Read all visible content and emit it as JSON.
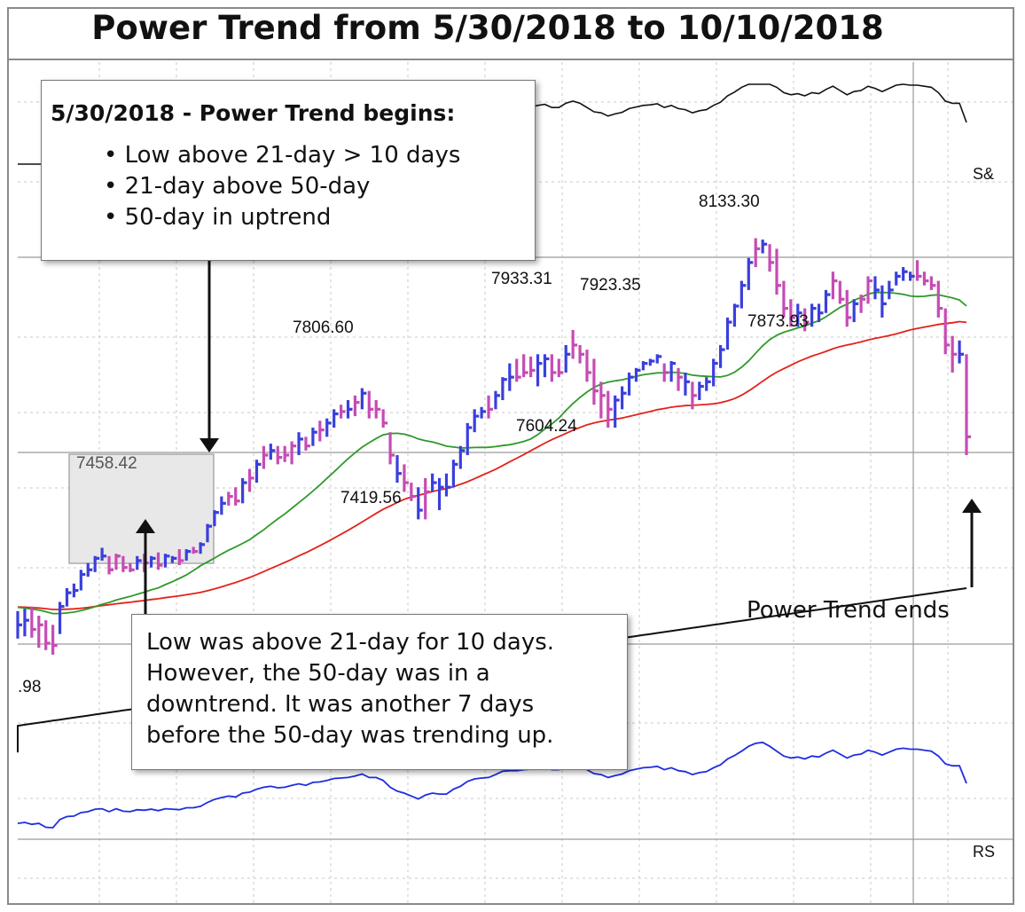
{
  "title": "Power Trend from 5/30/2018 to 10/10/2018",
  "callout_begin": {
    "heading": "5/30/2018 - Power Trend begins:",
    "bullets": [
      "Low above 21-day > 10 days",
      "21-day above 50-day",
      "50-day in uptrend"
    ]
  },
  "callout_note": {
    "lines": [
      "Low was above 21-day for 10 days.",
      "However, the 50-day was in a",
      "downtrend. It was another 7 days",
      "before the 50-day was trending up."
    ]
  },
  "end_label": "Power Trend ends",
  "colors": {
    "up_bar": "#3a3fdc",
    "down_bar": "#c64bb4",
    "ma21": "#2f9a2a",
    "ma50": "#e2231a",
    "ma200": "#111111",
    "sp500": "#111111",
    "rs": "#1f2de0",
    "box_fill": "#e8e8e8"
  },
  "chart_data": {
    "type": "line",
    "title": "Power Trend from 5/30/2018 to 10/10/2018",
    "price_axis": [
      7250,
      8250
    ],
    "series_labels": {
      "sp500": "S&",
      "rs": "RS"
    },
    "left_partial_label": ".98",
    "annotations": [
      {
        "text": "7458.42",
        "value": 7458.42,
        "index": 6
      },
      {
        "text": "7806.60",
        "value": 7806.6,
        "index": 33
      },
      {
        "text": "7419.56",
        "value": 7419.56,
        "index": 38
      },
      {
        "text": "7933.31",
        "value": 7933.31,
        "index": 53
      },
      {
        "text": "7923.35",
        "value": 7923.35,
        "index": 61
      },
      {
        "text": "7604.24",
        "value": 7604.24,
        "index": 56
      },
      {
        "text": "8133.30",
        "value": 8133.3,
        "index": 75
      },
      {
        "text": "7873.93",
        "value": 7873.93,
        "index": 85
      }
    ],
    "ohlc": [
      {
        "h": 7320,
        "l": 7260,
        "c": 7290,
        "up": true
      },
      {
        "h": 7325,
        "l": 7265,
        "c": 7300,
        "up": true
      },
      {
        "h": 7330,
        "l": 7262,
        "c": 7280,
        "up": false
      },
      {
        "h": 7310,
        "l": 7240,
        "c": 7290,
        "up": false
      },
      {
        "h": 7300,
        "l": 7235,
        "c": 7250,
        "up": false
      },
      {
        "h": 7290,
        "l": 7225,
        "c": 7245,
        "up": false
      },
      {
        "h": 7340,
        "l": 7270,
        "c": 7330,
        "up": true
      },
      {
        "h": 7370,
        "l": 7330,
        "c": 7360,
        "up": true
      },
      {
        "h": 7380,
        "l": 7350,
        "c": 7365,
        "up": true
      },
      {
        "h": 7410,
        "l": 7365,
        "c": 7400,
        "up": true
      },
      {
        "h": 7425,
        "l": 7395,
        "c": 7410,
        "up": true
      },
      {
        "h": 7440,
        "l": 7405,
        "c": 7435,
        "up": true
      },
      {
        "h": 7458,
        "l": 7430,
        "c": 7440,
        "up": true
      },
      {
        "h": 7440,
        "l": 7400,
        "c": 7410,
        "up": false
      },
      {
        "h": 7445,
        "l": 7410,
        "c": 7440,
        "up": false
      },
      {
        "h": 7440,
        "l": 7405,
        "c": 7415,
        "up": false
      },
      {
        "h": 7425,
        "l": 7405,
        "c": 7410,
        "up": false
      },
      {
        "h": 7440,
        "l": 7410,
        "c": 7430,
        "up": true
      },
      {
        "h": 7445,
        "l": 7405,
        "c": 7425,
        "up": false
      },
      {
        "h": 7440,
        "l": 7415,
        "c": 7435,
        "up": true
      },
      {
        "h": 7448,
        "l": 7410,
        "c": 7420,
        "up": false
      },
      {
        "h": 7445,
        "l": 7415,
        "c": 7440,
        "up": true
      },
      {
        "h": 7440,
        "l": 7425,
        "c": 7435,
        "up": true
      },
      {
        "h": 7455,
        "l": 7420,
        "c": 7430,
        "up": false
      },
      {
        "h": 7455,
        "l": 7430,
        "c": 7450,
        "up": true
      },
      {
        "h": 7460,
        "l": 7445,
        "c": 7450,
        "up": false
      },
      {
        "h": 7470,
        "l": 7445,
        "c": 7465,
        "up": true
      },
      {
        "h": 7510,
        "l": 7470,
        "c": 7505,
        "up": true
      },
      {
        "h": 7540,
        "l": 7505,
        "c": 7535,
        "up": true
      },
      {
        "h": 7570,
        "l": 7530,
        "c": 7555,
        "up": true
      },
      {
        "h": 7580,
        "l": 7550,
        "c": 7570,
        "up": false
      },
      {
        "h": 7590,
        "l": 7550,
        "c": 7560,
        "up": false
      },
      {
        "h": 7610,
        "l": 7555,
        "c": 7600,
        "up": true
      },
      {
        "h": 7630,
        "l": 7580,
        "c": 7610,
        "up": false
      },
      {
        "h": 7650,
        "l": 7600,
        "c": 7640,
        "up": true
      },
      {
        "h": 7680,
        "l": 7630,
        "c": 7660,
        "up": false
      },
      {
        "h": 7685,
        "l": 7650,
        "c": 7670,
        "up": true
      },
      {
        "h": 7680,
        "l": 7640,
        "c": 7655,
        "up": false
      },
      {
        "h": 7680,
        "l": 7645,
        "c": 7660,
        "up": false
      },
      {
        "h": 7690,
        "l": 7640,
        "c": 7680,
        "up": false
      },
      {
        "h": 7710,
        "l": 7660,
        "c": 7695,
        "up": true
      },
      {
        "h": 7700,
        "l": 7670,
        "c": 7680,
        "up": false
      },
      {
        "h": 7720,
        "l": 7680,
        "c": 7710,
        "up": true
      },
      {
        "h": 7735,
        "l": 7690,
        "c": 7715,
        "up": false
      },
      {
        "h": 7740,
        "l": 7700,
        "c": 7730,
        "up": true
      },
      {
        "h": 7760,
        "l": 7720,
        "c": 7750,
        "up": true
      },
      {
        "h": 7770,
        "l": 7740,
        "c": 7755,
        "up": false
      },
      {
        "h": 7780,
        "l": 7740,
        "c": 7760,
        "up": true
      },
      {
        "h": 7790,
        "l": 7745,
        "c": 7775,
        "up": false
      },
      {
        "h": 7806,
        "l": 7760,
        "c": 7795,
        "up": true
      },
      {
        "h": 7800,
        "l": 7740,
        "c": 7760,
        "up": false
      },
      {
        "h": 7780,
        "l": 7740,
        "c": 7760,
        "up": false
      },
      {
        "h": 7760,
        "l": 7720,
        "c": 7730,
        "up": false
      },
      {
        "h": 7710,
        "l": 7640,
        "c": 7660,
        "up": false
      },
      {
        "h": 7660,
        "l": 7600,
        "c": 7620,
        "up": true
      },
      {
        "h": 7640,
        "l": 7580,
        "c": 7600,
        "up": false
      },
      {
        "h": 7600,
        "l": 7560,
        "c": 7570,
        "up": false
      },
      {
        "h": 7590,
        "l": 7520,
        "c": 7540,
        "up": true
      },
      {
        "h": 7610,
        "l": 7520,
        "c": 7580,
        "up": false
      },
      {
        "h": 7620,
        "l": 7580,
        "c": 7600,
        "up": true
      },
      {
        "h": 7610,
        "l": 7540,
        "c": 7590,
        "up": true
      },
      {
        "h": 7620,
        "l": 7570,
        "c": 7590,
        "up": true
      },
      {
        "h": 7650,
        "l": 7590,
        "c": 7640,
        "up": true
      },
      {
        "h": 7680,
        "l": 7630,
        "c": 7670,
        "up": true
      },
      {
        "h": 7730,
        "l": 7660,
        "c": 7720,
        "up": true
      },
      {
        "h": 7760,
        "l": 7710,
        "c": 7745,
        "up": true
      },
      {
        "h": 7765,
        "l": 7740,
        "c": 7755,
        "up": true
      },
      {
        "h": 7790,
        "l": 7740,
        "c": 7760,
        "up": false
      },
      {
        "h": 7800,
        "l": 7760,
        "c": 7790,
        "up": true
      },
      {
        "h": 7830,
        "l": 7780,
        "c": 7825,
        "up": true
      },
      {
        "h": 7860,
        "l": 7800,
        "c": 7830,
        "up": true
      },
      {
        "h": 7870,
        "l": 7820,
        "c": 7830,
        "up": false
      },
      {
        "h": 7880,
        "l": 7830,
        "c": 7840,
        "up": false
      },
      {
        "h": 7875,
        "l": 7830,
        "c": 7845,
        "up": false
      },
      {
        "h": 7880,
        "l": 7810,
        "c": 7860,
        "up": true
      },
      {
        "h": 7880,
        "l": 7830,
        "c": 7870,
        "up": true
      },
      {
        "h": 7880,
        "l": 7820,
        "c": 7840,
        "up": false
      },
      {
        "h": 7870,
        "l": 7830,
        "c": 7840,
        "up": false
      },
      {
        "h": 7900,
        "l": 7840,
        "c": 7880,
        "up": true
      },
      {
        "h": 7933,
        "l": 7870,
        "c": 7900,
        "up": false
      },
      {
        "h": 7900,
        "l": 7860,
        "c": 7880,
        "up": false
      },
      {
        "h": 7890,
        "l": 7820,
        "c": 7840,
        "up": false
      },
      {
        "h": 7870,
        "l": 7770,
        "c": 7800,
        "up": false
      },
      {
        "h": 7820,
        "l": 7740,
        "c": 7790,
        "up": false
      },
      {
        "h": 7800,
        "l": 7720,
        "c": 7760,
        "up": false
      },
      {
        "h": 7790,
        "l": 7720,
        "c": 7780,
        "up": true
      },
      {
        "h": 7810,
        "l": 7760,
        "c": 7795,
        "up": true
      },
      {
        "h": 7840,
        "l": 7790,
        "c": 7830,
        "up": true
      },
      {
        "h": 7850,
        "l": 7820,
        "c": 7845,
        "up": true
      },
      {
        "h": 7865,
        "l": 7845,
        "c": 7860,
        "up": true
      },
      {
        "h": 7870,
        "l": 7855,
        "c": 7865,
        "up": true
      },
      {
        "h": 7880,
        "l": 7860,
        "c": 7875,
        "up": true
      },
      {
        "h": 7860,
        "l": 7820,
        "c": 7840,
        "up": false
      },
      {
        "h": 7865,
        "l": 7820,
        "c": 7860,
        "up": true
      },
      {
        "h": 7850,
        "l": 7800,
        "c": 7830,
        "up": false
      },
      {
        "h": 7840,
        "l": 7790,
        "c": 7820,
        "up": true
      },
      {
        "h": 7820,
        "l": 7760,
        "c": 7790,
        "up": false
      },
      {
        "h": 7820,
        "l": 7780,
        "c": 7810,
        "up": true
      },
      {
        "h": 7830,
        "l": 7800,
        "c": 7820,
        "up": true
      },
      {
        "h": 7870,
        "l": 7810,
        "c": 7860,
        "up": true
      },
      {
        "h": 7900,
        "l": 7850,
        "c": 7890,
        "up": true
      },
      {
        "h": 7960,
        "l": 7890,
        "c": 7950,
        "up": true
      },
      {
        "h": 7990,
        "l": 7940,
        "c": 7985,
        "up": true
      },
      {
        "h": 8040,
        "l": 7980,
        "c": 8030,
        "up": true
      },
      {
        "h": 8090,
        "l": 8020,
        "c": 8080,
        "up": true
      },
      {
        "h": 8133,
        "l": 8070,
        "c": 8110,
        "up": false
      },
      {
        "h": 8130,
        "l": 8100,
        "c": 8120,
        "up": true
      },
      {
        "h": 8120,
        "l": 8060,
        "c": 8080,
        "up": false
      },
      {
        "h": 8110,
        "l": 8010,
        "c": 8030,
        "up": false
      },
      {
        "h": 8040,
        "l": 7960,
        "c": 7980,
        "up": false
      },
      {
        "h": 8000,
        "l": 7940,
        "c": 7960,
        "up": false
      },
      {
        "h": 7990,
        "l": 7940,
        "c": 7970,
        "up": true
      },
      {
        "h": 7980,
        "l": 7930,
        "c": 7950,
        "up": false
      },
      {
        "h": 7990,
        "l": 7940,
        "c": 7980,
        "up": true
      },
      {
        "h": 7990,
        "l": 7950,
        "c": 7970,
        "up": true
      },
      {
        "h": 8020,
        "l": 7970,
        "c": 8010,
        "up": true
      },
      {
        "h": 8060,
        "l": 8000,
        "c": 8040,
        "up": false
      },
      {
        "h": 8040,
        "l": 7990,
        "c": 8000,
        "up": false
      },
      {
        "h": 8020,
        "l": 7940,
        "c": 7960,
        "up": false
      },
      {
        "h": 8000,
        "l": 7950,
        "c": 7990,
        "up": true
      },
      {
        "h": 8010,
        "l": 7970,
        "c": 8000,
        "up": false
      },
      {
        "h": 8050,
        "l": 7990,
        "c": 8040,
        "up": false
      },
      {
        "h": 8050,
        "l": 8000,
        "c": 8020,
        "up": true
      },
      {
        "h": 8030,
        "l": 7960,
        "c": 7990,
        "up": true
      },
      {
        "h": 8040,
        "l": 8000,
        "c": 8020,
        "up": true
      },
      {
        "h": 8060,
        "l": 8030,
        "c": 8050,
        "up": true
      },
      {
        "h": 8070,
        "l": 8040,
        "c": 8060,
        "up": true
      },
      {
        "h": 8060,
        "l": 8040,
        "c": 8050,
        "up": true
      },
      {
        "h": 8085,
        "l": 8040,
        "c": 8050,
        "up": false
      },
      {
        "h": 8060,
        "l": 8030,
        "c": 8040,
        "up": false
      },
      {
        "h": 8050,
        "l": 8020,
        "c": 8030,
        "up": false
      },
      {
        "h": 8040,
        "l": 7960,
        "c": 7980,
        "up": false
      },
      {
        "h": 7980,
        "l": 7880,
        "c": 7900,
        "up": false
      },
      {
        "h": 7920,
        "l": 7840,
        "c": 7880,
        "up": false
      },
      {
        "h": 7910,
        "l": 7860,
        "c": 7880,
        "up": true
      },
      {
        "h": 7880,
        "l": 7660,
        "c": 7700,
        "up": false
      }
    ]
  }
}
